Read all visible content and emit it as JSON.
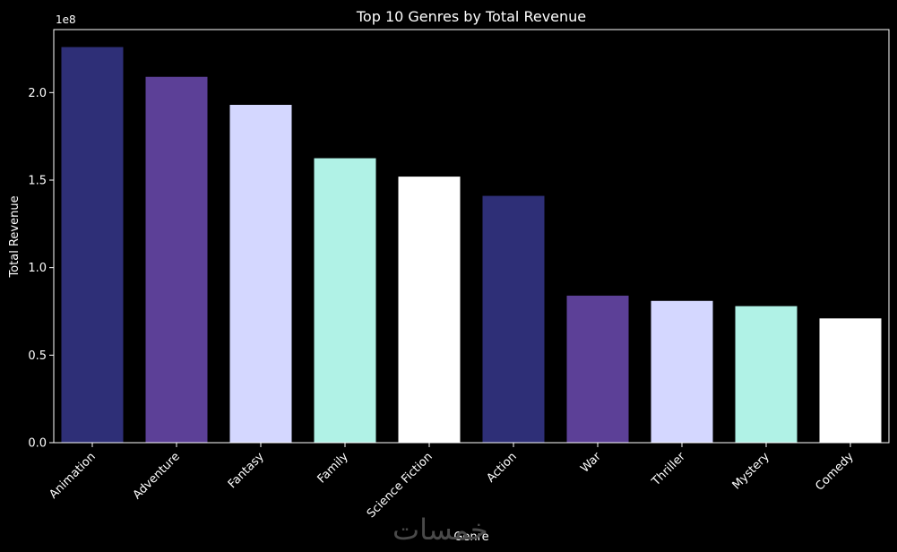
{
  "watermark": "خمسات",
  "chart_data": {
    "type": "bar",
    "title": "Top 10 Genres by Total Revenue",
    "xlabel": "Genre",
    "ylabel": "Total Revenue",
    "y_offset_label": "1e8",
    "categories": [
      "Animation",
      "Adventure",
      "Fantasy",
      "Family",
      "Science Fiction",
      "Action",
      "War",
      "Thriller",
      "Mystery",
      "Comedy"
    ],
    "values": [
      226000000,
      209000000,
      193000000,
      162500000,
      152000000,
      141000000,
      84000000,
      81000000,
      78000000,
      71000000
    ],
    "bar_colors": [
      "#2e2f77",
      "#5c4097",
      "#d4d7ff",
      "#b0f2e6",
      "#ffffff",
      "#2e2f77",
      "#5c4097",
      "#d4d7ff",
      "#b0f2e6",
      "#ffffff"
    ],
    "ylim": [
      0,
      236000000
    ],
    "yticks": [
      0,
      50000000,
      100000000,
      150000000,
      200000000
    ],
    "ytick_labels": [
      "0.0",
      "0.5",
      "1.0",
      "1.5",
      "2.0"
    ],
    "grid": false,
    "background": "#000000",
    "foreground": "#ffffff"
  }
}
